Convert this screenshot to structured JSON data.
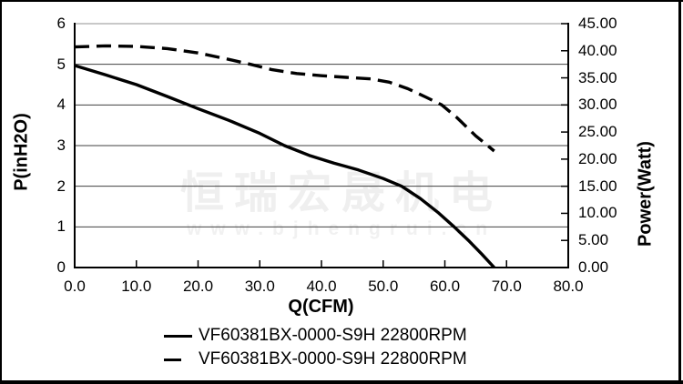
{
  "watermark": {
    "line1": "恒瑞宏晟机电",
    "line2": "www.bjhengrui.cn"
  },
  "chart_data": {
    "type": "line",
    "title": "",
    "x_axis": {
      "label": "Q(CFM)",
      "min": 0,
      "max": 80,
      "tick_step": 10,
      "tick_labels": [
        "0.0",
        "10.0",
        "20.0",
        "30.0",
        "40.0",
        "50.0",
        "60.0",
        "70.0",
        "80.0"
      ]
    },
    "y_axis_left": {
      "label": "P(inH2O)",
      "min": 0,
      "max": 6,
      "tick_step": 1,
      "tick_labels": [
        "0",
        "1",
        "2",
        "3",
        "4",
        "5",
        "6"
      ]
    },
    "y_axis_right": {
      "label": "Power(Watt)",
      "min": 0,
      "max": 45,
      "tick_step": 5,
      "tick_labels": [
        "0.00",
        "5.00",
        "10.00",
        "15.00",
        "20.00",
        "25.00",
        "30.00",
        "35.00",
        "40.00",
        "45.00"
      ]
    },
    "grid": "horizontal-only",
    "legend_position": "bottom",
    "series": [
      {
        "name": "VF60381BX-0000-S9H 22800RPM",
        "style": "solid",
        "axis": "left",
        "unit": "inH2O",
        "points": [
          [
            0,
            4.97
          ],
          [
            5,
            4.74
          ],
          [
            10,
            4.5
          ],
          [
            15,
            4.21
          ],
          [
            20,
            3.91
          ],
          [
            25,
            3.62
          ],
          [
            30,
            3.3
          ],
          [
            34,
            3.0
          ],
          [
            38,
            2.76
          ],
          [
            42,
            2.57
          ],
          [
            46,
            2.4
          ],
          [
            50,
            2.19
          ],
          [
            53,
            2.0
          ],
          [
            56,
            1.7
          ],
          [
            59,
            1.34
          ],
          [
            61.5,
            1.0
          ],
          [
            64,
            0.64
          ],
          [
            66,
            0.33
          ],
          [
            68,
            0.0
          ]
        ]
      },
      {
        "name": "VF60381BX-0000-S9H 22800RPM",
        "style": "dashed",
        "axis": "right",
        "unit": "Watt",
        "points": [
          [
            0,
            40.7
          ],
          [
            5,
            40.9
          ],
          [
            10,
            40.8
          ],
          [
            15,
            40.4
          ],
          [
            20,
            39.6
          ],
          [
            25,
            38.4
          ],
          [
            28.5,
            37.5
          ],
          [
            32,
            36.5
          ],
          [
            36,
            35.8
          ],
          [
            40,
            35.4
          ],
          [
            44,
            35.1
          ],
          [
            48,
            34.8
          ],
          [
            51,
            34.2
          ],
          [
            54,
            33.0
          ],
          [
            57,
            31.4
          ],
          [
            59.5,
            30.0
          ],
          [
            62,
            27.6
          ],
          [
            65,
            24.3
          ],
          [
            68,
            21.5
          ]
        ]
      }
    ],
    "colors": {
      "curve": "#000000",
      "gridline": "#404040",
      "top_border": "#a8a8a8",
      "axis": "#000000"
    }
  },
  "legend": {
    "items": [
      {
        "label": "VF60381BX-0000-S9H 22800RPM",
        "style": "solid"
      },
      {
        "label": "VF60381BX-0000-S9H 22800RPM",
        "style": "dashed"
      }
    ]
  }
}
